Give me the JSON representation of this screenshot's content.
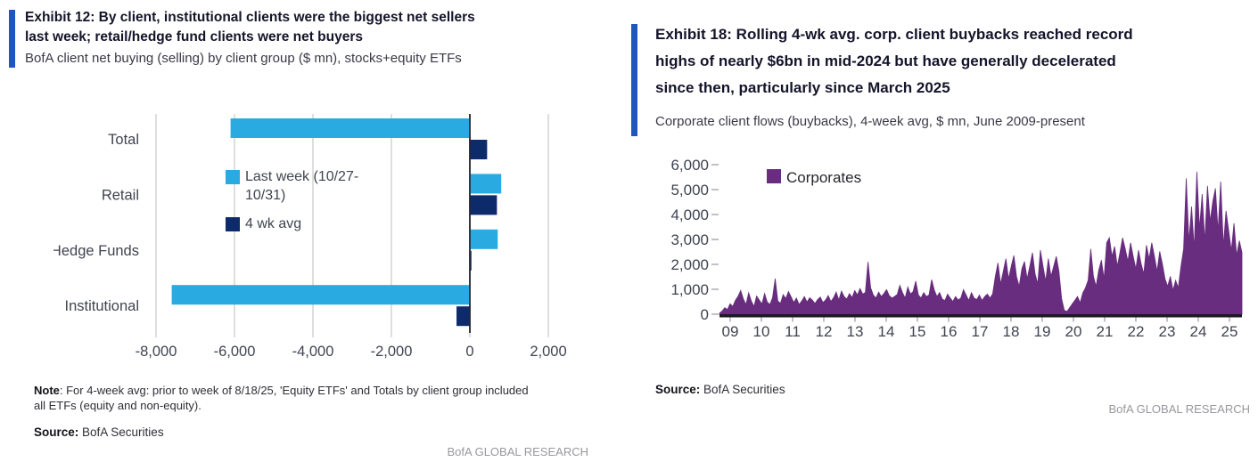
{
  "left_panel": {
    "exhibit_title": "Exhibit 12: By client, institutional clients were the biggest net sellers\nlast week; retail/hedge fund clients were net buyers",
    "subtitle": "BofA client net buying (selling) by client group ($ mn), stocks+equity ETFs",
    "note_label": "Note",
    "note_text": ": For 4-week avg: prior to week of 8/18/25, 'Equity ETFs' and Totals by client group included\nall ETFs (equity and non-equity).",
    "source_label": "Source:",
    "source_text": " BofA Securities",
    "watermark": "BofA GLOBAL RESEARCH"
  },
  "right_panel": {
    "exhibit_title": "Exhibit 18: Rolling 4-wk avg. corp. client buybacks reached record\nhighs of nearly $6bn in mid-2024 but have generally decelerated\nsince then, particularly since March 2025",
    "subtitle": "Corporate client flows (buybacks), 4-week avg, $ mn, June 2009-present",
    "source_label": "Source:",
    "source_text": " BofA Securities",
    "watermark": "BofA GLOBAL RESEARCH"
  },
  "colors": {
    "accent_blue": "#2057BE",
    "light_blue": "#29ABE2",
    "navy": "#0D2A6A",
    "purple": "#682D7E",
    "gridline": "#C3C3C3",
    "axis_dark": "#26262E",
    "tick_text": "#3F4450"
  },
  "chart_data": [
    {
      "type": "bar",
      "orientation": "horizontal",
      "title": "BofA client net buying (selling) by client group ($ mn), stocks+equity ETFs",
      "categories": [
        "Total",
        "Retail",
        "Hedge Funds",
        "Institutional"
      ],
      "series": [
        {
          "name": "Last week (10/27-10/31)",
          "color": "#29ABE2",
          "values": [
            -6100,
            800,
            710,
            -7600
          ]
        },
        {
          "name": "4 wk avg",
          "color": "#0D2A6A",
          "values": [
            440,
            690,
            40,
            -340
          ]
        }
      ],
      "xlim": [
        -8500,
        2600
      ],
      "xticks": [
        -8000,
        -6000,
        -4000,
        -2000,
        0,
        2000
      ],
      "xtick_labels": [
        "-8,000",
        "-6,000",
        "-4,000",
        "-2,000",
        "0",
        "2,000"
      ],
      "grid": "vertical",
      "legend_position": "inside-left"
    },
    {
      "type": "area",
      "title": "Corporate client flows (buybacks), 4-week avg, $ mn, June 2009-present",
      "series_name": "Corporates",
      "color": "#682D7E",
      "x_start": "2009-06",
      "x_end": "2025-11",
      "sampling": "monthly estimates read from plot",
      "ylim": [
        0,
        6000
      ],
      "yticks": [
        0,
        1000,
        2000,
        3000,
        4000,
        5000,
        6000
      ],
      "ytick_labels": [
        "0",
        "1,000",
        "2,000",
        "3,000",
        "4,000",
        "5,000",
        "6,000"
      ],
      "xtick_labels": [
        "09",
        "10",
        "11",
        "12",
        "13",
        "14",
        "15",
        "16",
        "17",
        "18",
        "19",
        "20",
        "21",
        "22",
        "23",
        "24",
        "25"
      ],
      "grid": "off",
      "legend_position": "inside-top-left",
      "values": [
        40,
        130,
        260,
        190,
        420,
        310,
        560,
        720,
        950,
        610,
        390,
        860,
        530,
        310,
        730,
        570,
        410,
        830,
        490,
        390,
        660,
        1430,
        530,
        440,
        790,
        630,
        910,
        700,
        470,
        650,
        390,
        530,
        710,
        490,
        660,
        570,
        430,
        590,
        690,
        470,
        570,
        750,
        510,
        660,
        890,
        570,
        930,
        710,
        610,
        830,
        670,
        950,
        770,
        1030,
        810,
        870,
        2100,
        1060,
        770,
        650,
        890,
        710,
        830,
        990,
        750,
        650,
        710,
        790,
        1160,
        870,
        650,
        1090,
        810,
        910,
        1330,
        770,
        650,
        870,
        710,
        770,
        1390,
        970,
        710,
        870,
        610,
        550,
        810,
        650,
        510,
        710,
        570,
        650,
        990,
        770,
        550,
        870,
        650,
        590,
        770,
        550,
        710,
        810,
        650,
        820,
        1520,
        2060,
        1210,
        1720,
        2230,
        1420,
        1920,
        2360,
        1510,
        1120,
        1820,
        2120,
        1420,
        1920,
        2470,
        1620,
        1220,
        2570,
        1920,
        1320,
        2230,
        1520,
        1920,
        2320,
        1720,
        620,
        160,
        110,
        260,
        410,
        560,
        710,
        460,
        860,
        1060,
        1360,
        2620,
        1520,
        1120,
        1770,
        2170,
        1420,
        2870,
        3070,
        2320,
        2720,
        1920,
        2470,
        3070,
        2620,
        2120,
        2870,
        2320,
        1820,
        2570,
        2020,
        1620,
        2770,
        2220,
        2870,
        2320,
        1720,
        2520,
        2020,
        1420,
        1120,
        1520,
        960,
        1360,
        1060,
        1920,
        2620,
        5450,
        2920,
        4320,
        2620,
        5720,
        3420,
        4820,
        2920,
        5150,
        3720,
        4520,
        5050,
        3320,
        5320,
        2720,
        4150,
        3350,
        2550,
        3650,
        2350,
        2950,
        2480
      ]
    }
  ]
}
